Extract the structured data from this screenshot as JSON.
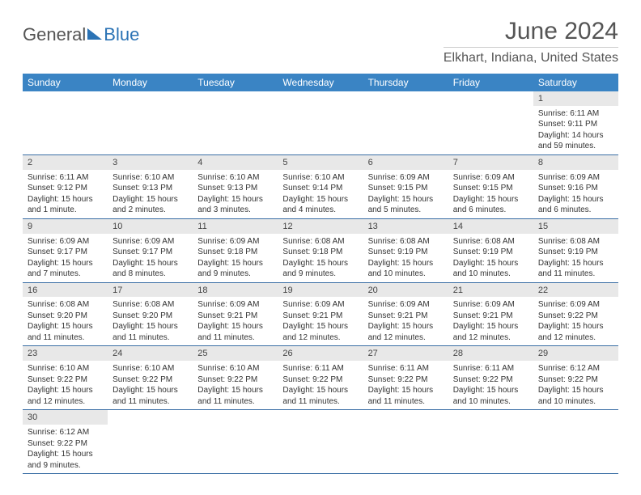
{
  "brand": {
    "part1": "General",
    "part2": "Blue"
  },
  "title": "June 2024",
  "location": "Elkhart, Indiana, United States",
  "colors": {
    "header_bg": "#3a84c4",
    "header_fg": "#ffffff",
    "daynum_bg": "#e8e8e8",
    "week_border": "#3a6ea5",
    "text": "#333333",
    "title_color": "#555555"
  },
  "day_labels": [
    "Sunday",
    "Monday",
    "Tuesday",
    "Wednesday",
    "Thursday",
    "Friday",
    "Saturday"
  ],
  "weeks": [
    [
      null,
      null,
      null,
      null,
      null,
      null,
      {
        "n": "1",
        "sunrise": "Sunrise: 6:11 AM",
        "sunset": "Sunset: 9:11 PM",
        "daylight": "Daylight: 14 hours and 59 minutes."
      }
    ],
    [
      {
        "n": "2",
        "sunrise": "Sunrise: 6:11 AM",
        "sunset": "Sunset: 9:12 PM",
        "daylight": "Daylight: 15 hours and 1 minute."
      },
      {
        "n": "3",
        "sunrise": "Sunrise: 6:10 AM",
        "sunset": "Sunset: 9:13 PM",
        "daylight": "Daylight: 15 hours and 2 minutes."
      },
      {
        "n": "4",
        "sunrise": "Sunrise: 6:10 AM",
        "sunset": "Sunset: 9:13 PM",
        "daylight": "Daylight: 15 hours and 3 minutes."
      },
      {
        "n": "5",
        "sunrise": "Sunrise: 6:10 AM",
        "sunset": "Sunset: 9:14 PM",
        "daylight": "Daylight: 15 hours and 4 minutes."
      },
      {
        "n": "6",
        "sunrise": "Sunrise: 6:09 AM",
        "sunset": "Sunset: 9:15 PM",
        "daylight": "Daylight: 15 hours and 5 minutes."
      },
      {
        "n": "7",
        "sunrise": "Sunrise: 6:09 AM",
        "sunset": "Sunset: 9:15 PM",
        "daylight": "Daylight: 15 hours and 6 minutes."
      },
      {
        "n": "8",
        "sunrise": "Sunrise: 6:09 AM",
        "sunset": "Sunset: 9:16 PM",
        "daylight": "Daylight: 15 hours and 6 minutes."
      }
    ],
    [
      {
        "n": "9",
        "sunrise": "Sunrise: 6:09 AM",
        "sunset": "Sunset: 9:17 PM",
        "daylight": "Daylight: 15 hours and 7 minutes."
      },
      {
        "n": "10",
        "sunrise": "Sunrise: 6:09 AM",
        "sunset": "Sunset: 9:17 PM",
        "daylight": "Daylight: 15 hours and 8 minutes."
      },
      {
        "n": "11",
        "sunrise": "Sunrise: 6:09 AM",
        "sunset": "Sunset: 9:18 PM",
        "daylight": "Daylight: 15 hours and 9 minutes."
      },
      {
        "n": "12",
        "sunrise": "Sunrise: 6:08 AM",
        "sunset": "Sunset: 9:18 PM",
        "daylight": "Daylight: 15 hours and 9 minutes."
      },
      {
        "n": "13",
        "sunrise": "Sunrise: 6:08 AM",
        "sunset": "Sunset: 9:19 PM",
        "daylight": "Daylight: 15 hours and 10 minutes."
      },
      {
        "n": "14",
        "sunrise": "Sunrise: 6:08 AM",
        "sunset": "Sunset: 9:19 PM",
        "daylight": "Daylight: 15 hours and 10 minutes."
      },
      {
        "n": "15",
        "sunrise": "Sunrise: 6:08 AM",
        "sunset": "Sunset: 9:19 PM",
        "daylight": "Daylight: 15 hours and 11 minutes."
      }
    ],
    [
      {
        "n": "16",
        "sunrise": "Sunrise: 6:08 AM",
        "sunset": "Sunset: 9:20 PM",
        "daylight": "Daylight: 15 hours and 11 minutes."
      },
      {
        "n": "17",
        "sunrise": "Sunrise: 6:08 AM",
        "sunset": "Sunset: 9:20 PM",
        "daylight": "Daylight: 15 hours and 11 minutes."
      },
      {
        "n": "18",
        "sunrise": "Sunrise: 6:09 AM",
        "sunset": "Sunset: 9:21 PM",
        "daylight": "Daylight: 15 hours and 11 minutes."
      },
      {
        "n": "19",
        "sunrise": "Sunrise: 6:09 AM",
        "sunset": "Sunset: 9:21 PM",
        "daylight": "Daylight: 15 hours and 12 minutes."
      },
      {
        "n": "20",
        "sunrise": "Sunrise: 6:09 AM",
        "sunset": "Sunset: 9:21 PM",
        "daylight": "Daylight: 15 hours and 12 minutes."
      },
      {
        "n": "21",
        "sunrise": "Sunrise: 6:09 AM",
        "sunset": "Sunset: 9:21 PM",
        "daylight": "Daylight: 15 hours and 12 minutes."
      },
      {
        "n": "22",
        "sunrise": "Sunrise: 6:09 AM",
        "sunset": "Sunset: 9:22 PM",
        "daylight": "Daylight: 15 hours and 12 minutes."
      }
    ],
    [
      {
        "n": "23",
        "sunrise": "Sunrise: 6:10 AM",
        "sunset": "Sunset: 9:22 PM",
        "daylight": "Daylight: 15 hours and 12 minutes."
      },
      {
        "n": "24",
        "sunrise": "Sunrise: 6:10 AM",
        "sunset": "Sunset: 9:22 PM",
        "daylight": "Daylight: 15 hours and 11 minutes."
      },
      {
        "n": "25",
        "sunrise": "Sunrise: 6:10 AM",
        "sunset": "Sunset: 9:22 PM",
        "daylight": "Daylight: 15 hours and 11 minutes."
      },
      {
        "n": "26",
        "sunrise": "Sunrise: 6:11 AM",
        "sunset": "Sunset: 9:22 PM",
        "daylight": "Daylight: 15 hours and 11 minutes."
      },
      {
        "n": "27",
        "sunrise": "Sunrise: 6:11 AM",
        "sunset": "Sunset: 9:22 PM",
        "daylight": "Daylight: 15 hours and 11 minutes."
      },
      {
        "n": "28",
        "sunrise": "Sunrise: 6:11 AM",
        "sunset": "Sunset: 9:22 PM",
        "daylight": "Daylight: 15 hours and 10 minutes."
      },
      {
        "n": "29",
        "sunrise": "Sunrise: 6:12 AM",
        "sunset": "Sunset: 9:22 PM",
        "daylight": "Daylight: 15 hours and 10 minutes."
      }
    ],
    [
      {
        "n": "30",
        "sunrise": "Sunrise: 6:12 AM",
        "sunset": "Sunset: 9:22 PM",
        "daylight": "Daylight: 15 hours and 9 minutes."
      },
      null,
      null,
      null,
      null,
      null,
      null
    ]
  ]
}
